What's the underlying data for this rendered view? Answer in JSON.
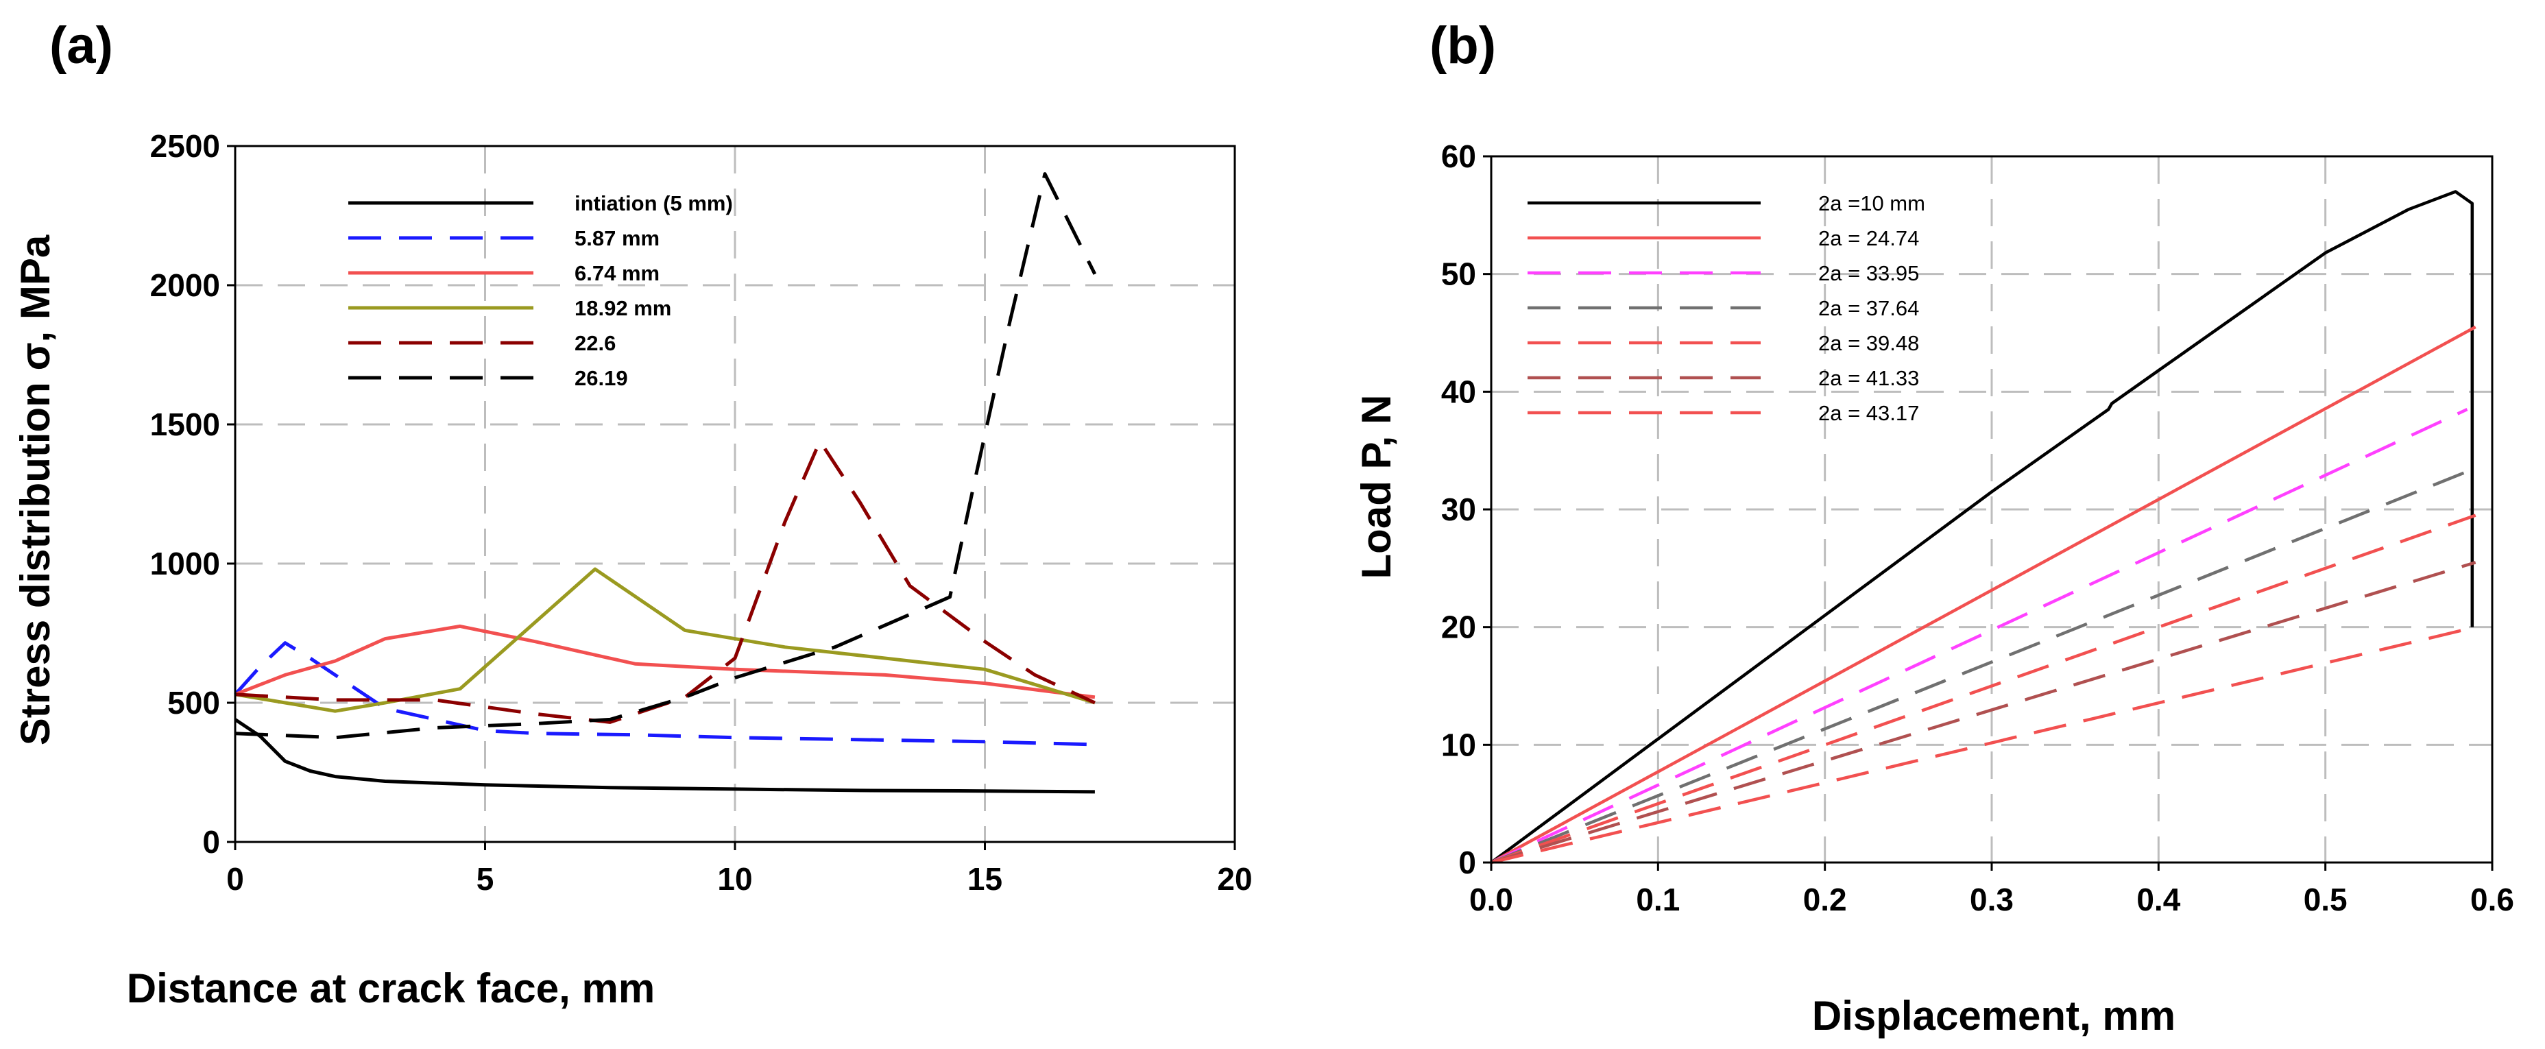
{
  "chart_data": [
    {
      "panel": "(a)",
      "type": "line",
      "title": "",
      "xlabel": "Distance at crack face, mm",
      "ylabel": "Stress distribution σ, MPa",
      "xlim": [
        0,
        20
      ],
      "ylim": [
        0,
        2500
      ],
      "xticks": [
        "0",
        "5",
        "10",
        "15",
        "20"
      ],
      "yticks": [
        "0",
        "500",
        "1000",
        "1500",
        "2000",
        "2500"
      ],
      "grid": true,
      "legend_position": "top-left",
      "series": [
        {
          "name": "intiation (5 mm)",
          "color": "#000000",
          "dash": "solid",
          "x": [
            0,
            0.5,
            1,
            1.5,
            2,
            3,
            5,
            7.5,
            10,
            12.5,
            15,
            17.2
          ],
          "y": [
            440,
            380,
            290,
            255,
            235,
            218,
            205,
            195,
            190,
            185,
            183,
            180
          ]
        },
        {
          "name": "5.87 mm",
          "color": "#1a1aff",
          "dash": "dashed",
          "x": [
            0,
            0.5,
            1,
            1.5,
            2,
            3,
            5,
            6,
            8,
            10,
            15,
            17.2
          ],
          "y": [
            530,
            630,
            715,
            660,
            600,
            480,
            400,
            390,
            385,
            375,
            360,
            350
          ]
        },
        {
          "name": "6.74 mm",
          "color": "#f25050",
          "dash": "solid",
          "x": [
            0,
            1,
            2,
            3,
            4.5,
            6,
            8,
            10,
            13,
            15,
            17.2
          ],
          "y": [
            530,
            600,
            650,
            730,
            775,
            720,
            640,
            620,
            600,
            570,
            520
          ]
        },
        {
          "name": "18.92 mm",
          "color": "#9a9a20",
          "dash": "solid",
          "x": [
            0,
            1,
            2,
            3,
            4.5,
            7.2,
            9,
            11,
            13,
            15,
            17.2
          ],
          "y": [
            530,
            500,
            470,
            500,
            550,
            980,
            760,
            700,
            660,
            620,
            500
          ]
        },
        {
          "name": "22.6",
          "color": "#8b0000",
          "dash": "dashed",
          "x": [
            0,
            2,
            4,
            6,
            7.5,
            9,
            10,
            11,
            11.7,
            12.5,
            13.5,
            15,
            16,
            17.2
          ],
          "y": [
            530,
            510,
            510,
            460,
            430,
            520,
            660,
            1150,
            1440,
            1220,
            920,
            720,
            600,
            500
          ]
        },
        {
          "name": "26.19",
          "color": "#000000",
          "dash": "dashed",
          "x": [
            0,
            2,
            4,
            6,
            7.5,
            9,
            10,
            12,
            14.3,
            14.8,
            15.5,
            16.2,
            17.2
          ],
          "y": [
            390,
            375,
            410,
            425,
            440,
            520,
            590,
            700,
            880,
            1300,
            1870,
            2400,
            2040
          ]
        }
      ]
    },
    {
      "panel": "(b)",
      "type": "line",
      "title": "",
      "xlabel": "Displacement, mm",
      "ylabel": "Load P, N",
      "xlim": [
        0.0,
        0.6
      ],
      "ylim": [
        0,
        60
      ],
      "xticks": [
        "0.0",
        "0.1",
        "0.2",
        "0.3",
        "0.4",
        "0.5",
        "0.6"
      ],
      "yticks": [
        "0",
        "10",
        "20",
        "30",
        "40",
        "50",
        "60"
      ],
      "grid": true,
      "legend_position": "top-left",
      "series": [
        {
          "name": "2a =10 mm",
          "color": "#000000",
          "dash": "solid",
          "x": [
            0,
            0.1,
            0.2,
            0.3,
            0.37,
            0.372,
            0.4,
            0.45,
            0.5,
            0.55,
            0.578,
            0.583,
            0.588,
            0.588
          ],
          "y": [
            0,
            10.5,
            21,
            31.5,
            38.5,
            39,
            41.8,
            46.8,
            51.8,
            55.5,
            57,
            56.5,
            56,
            20
          ]
        },
        {
          "name": "2a = 24.74",
          "color": "#f25050",
          "dash": "solid",
          "x": [
            0,
            0.59
          ],
          "y": [
            0,
            45.5
          ]
        },
        {
          "name": "2a = 33.95",
          "color": "#ff40ff",
          "dash": "dashed",
          "x": [
            0,
            0.585
          ],
          "y": [
            0,
            38.5
          ]
        },
        {
          "name": "2a = 37.64",
          "color": "#707070",
          "dash": "dashed",
          "x": [
            0,
            0.59
          ],
          "y": [
            0,
            33.5
          ]
        },
        {
          "name": "2a = 39.48",
          "color": "#f25050",
          "dash": "dashed",
          "x": [
            0,
            0.59
          ],
          "y": [
            0,
            29.5
          ]
        },
        {
          "name": "2a = 41.33",
          "color": "#b05050",
          "dash": "dashed",
          "x": [
            0,
            0.59
          ],
          "y": [
            0,
            25.5
          ]
        },
        {
          "name": "2a = 43.17",
          "color": "#f25050",
          "dash": "dashed",
          "x": [
            0,
            0.59
          ],
          "y": [
            0,
            20
          ]
        }
      ]
    }
  ]
}
